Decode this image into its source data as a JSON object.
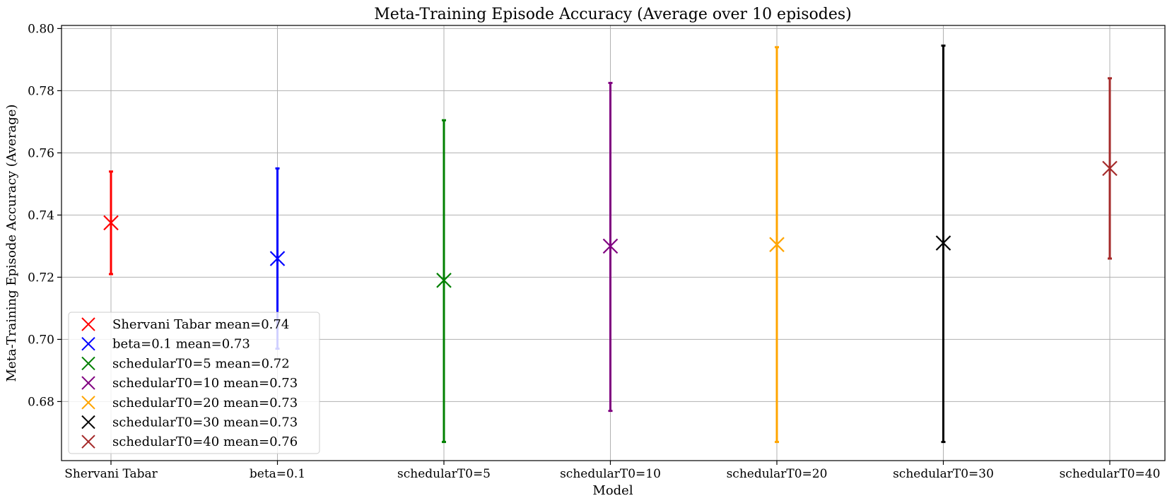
{
  "chart_data": {
    "type": "scatter",
    "title": "Meta-Training Episode Accuracy (Average over 10 episodes)",
    "xlabel": "Model",
    "ylabel": "Meta-Training Episode Accuracy (Average)",
    "ylim": [
      0.661,
      0.801
    ],
    "yticks": [
      0.68,
      0.7,
      0.72,
      0.74,
      0.76,
      0.78,
      0.8
    ],
    "ytick_labels": [
      "0.68",
      "0.70",
      "0.72",
      "0.74",
      "0.76",
      "0.78",
      "0.80"
    ],
    "grid": true,
    "legend_position": "lower-left",
    "marker": "x",
    "categories": [
      "Shervani Tabar",
      "beta=0.1",
      "schedularT0=5",
      "schedularT0=10",
      "schedularT0=20",
      "schedularT0=30",
      "schedularT0=40"
    ],
    "series": [
      {
        "name": "Shervani Tabar mean=0.74",
        "category": "Shervani Tabar",
        "mean": 0.7375,
        "low": 0.721,
        "high": 0.754,
        "color": "#ff0000"
      },
      {
        "name": "beta=0.1 mean=0.73",
        "category": "beta=0.1",
        "mean": 0.726,
        "low": 0.697,
        "high": 0.755,
        "color": "#0000ff"
      },
      {
        "name": "schedularT0=5 mean=0.72",
        "category": "schedularT0=5",
        "mean": 0.719,
        "low": 0.667,
        "high": 0.7705,
        "color": "#008000"
      },
      {
        "name": "schedularT0=10 mean=0.73",
        "category": "schedularT0=10",
        "mean": 0.73,
        "low": 0.677,
        "high": 0.7825,
        "color": "#800080"
      },
      {
        "name": "schedularT0=20 mean=0.73",
        "category": "schedularT0=20",
        "mean": 0.7305,
        "low": 0.667,
        "high": 0.794,
        "color": "#ffa500"
      },
      {
        "name": "schedularT0=30 mean=0.73",
        "category": "schedularT0=30",
        "mean": 0.731,
        "low": 0.667,
        "high": 0.7945,
        "color": "#000000"
      },
      {
        "name": "schedularT0=40 mean=0.76",
        "category": "schedularT0=40",
        "mean": 0.755,
        "low": 0.726,
        "high": 0.784,
        "color": "#a52a2a"
      }
    ]
  }
}
